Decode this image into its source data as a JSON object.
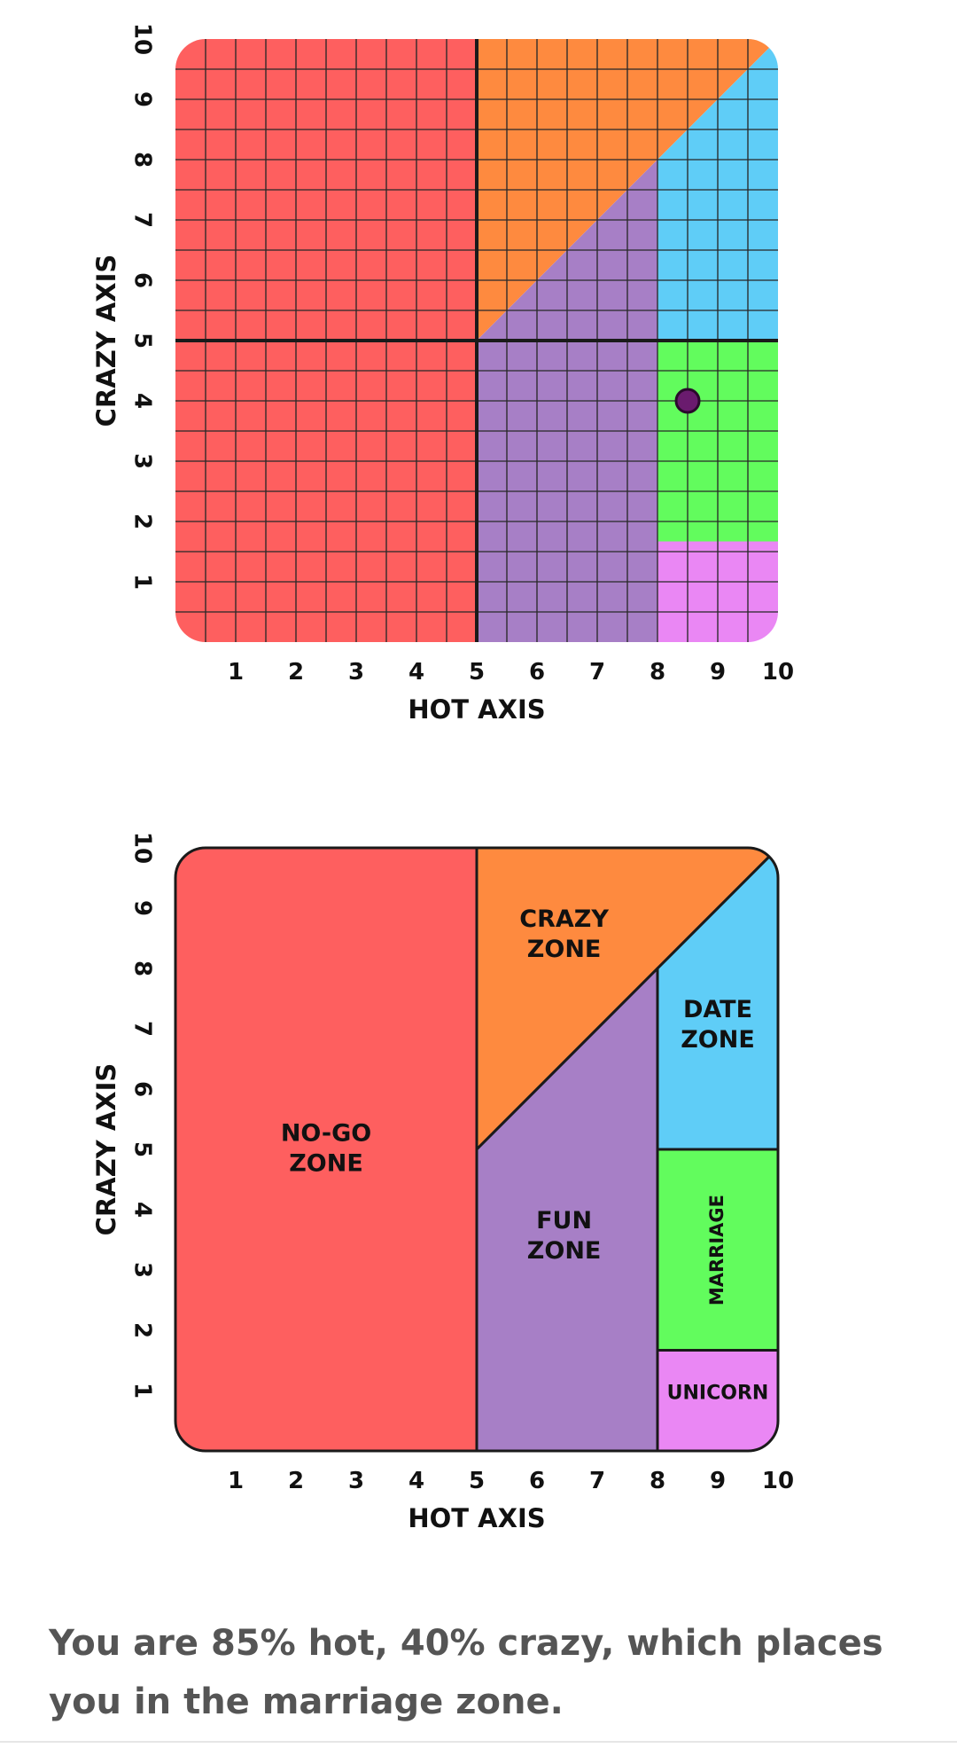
{
  "chart_data": [
    {
      "type": "scatter",
      "xlabel": "HOT AXIS",
      "ylabel": "CRAZY AXIS",
      "xlim": [
        0,
        10
      ],
      "ylim": [
        0,
        10
      ],
      "x_ticks": [
        "1",
        "2",
        "3",
        "4",
        "5",
        "6",
        "7",
        "8",
        "9",
        "10"
      ],
      "y_ticks": [
        "1",
        "2",
        "3",
        "4",
        "5",
        "6",
        "7",
        "8",
        "9",
        "10"
      ],
      "grid": true,
      "grid_step": 0.5,
      "points": [
        {
          "x": 8.5,
          "y": 4,
          "color": "#6a1b6e"
        }
      ]
    },
    {
      "type": "area",
      "xlabel": "HOT AXIS",
      "ylabel": "CRAZY AXIS",
      "xlim": [
        0,
        10
      ],
      "ylim": [
        0,
        10
      ],
      "x_ticks": [
        "1",
        "2",
        "3",
        "4",
        "5",
        "6",
        "7",
        "8",
        "9",
        "10"
      ],
      "y_ticks": [
        "1",
        "2",
        "3",
        "4",
        "5",
        "6",
        "7",
        "8",
        "9",
        "10"
      ],
      "grid": false,
      "zones": [
        {
          "label": [
            "NO-GO",
            "ZONE"
          ]
        },
        {
          "label": [
            "CRAZY",
            "ZONE"
          ]
        },
        {
          "label": [
            "FUN",
            "ZONE"
          ]
        },
        {
          "label": [
            "DATE",
            "ZONE"
          ]
        },
        {
          "label": [
            "MARRIAGE"
          ]
        },
        {
          "label": [
            "UNICORN"
          ]
        }
      ]
    }
  ],
  "colors": {
    "no_go": "#fe5f5f",
    "crazy": "#fe8a3f",
    "fun": "#a77fc6",
    "date": "#5fcdf7",
    "marriage": "#62fc5d",
    "unicorn": "#ea87f4",
    "ink": "#1a1a1a",
    "point": "#6a1b6e"
  },
  "result": {
    "text": "You are 85% hot, 40% crazy, which places you in the marriage zone."
  }
}
